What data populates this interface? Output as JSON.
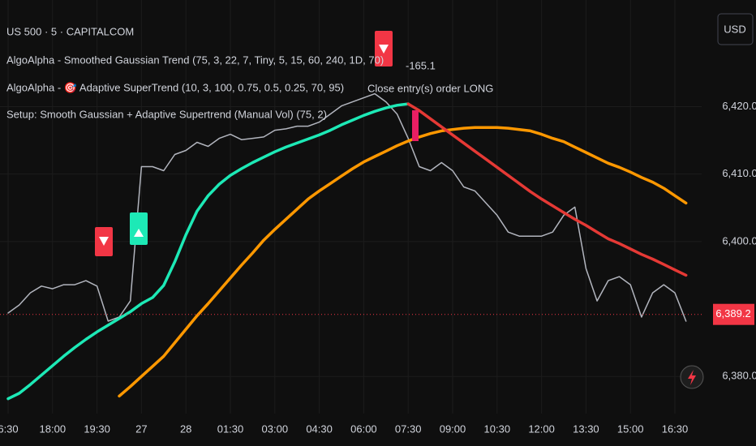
{
  "chart_data": {
    "type": "line",
    "title": "US 500 · 5 · CAPITALCOM",
    "indicators": [
      "AlgoAlpha - Smoothed Gaussian Trend (75, 3, 22, 7, Tiny, 5, 15, 60, 240, 1D, 70)",
      "AlgoAlpha - 🎯 Adaptive SuperTrend (10, 3, 100, 0.75, 0.5, 0.25, 70, 95)",
      "Setup: Smooth Gaussian + Adaptive Supertrend (Manual Vol) (75, 2)"
    ],
    "currency": "USD",
    "annotations": [
      "-165.1",
      "Close entry(s) order LONG"
    ],
    "categories": [
      "6:30",
      null,
      null,
      null,
      "18:00",
      null,
      null,
      null,
      "19:30",
      null,
      null,
      null,
      "27",
      null,
      null,
      null,
      "28",
      null,
      null,
      null,
      "01:30",
      null,
      null,
      null,
      "03:00",
      null,
      null,
      null,
      "04:30",
      null,
      null,
      null,
      "06:00",
      null,
      null,
      null,
      "07:30",
      null,
      null,
      null,
      "09:00",
      null,
      null,
      null,
      "10:30",
      null,
      null,
      null,
      "12:00",
      null,
      null,
      null,
      "13:30",
      null,
      null,
      null,
      "15:00",
      null,
      null,
      null,
      "16:30",
      null
    ],
    "series": [
      {
        "color": "#b2b5be",
        "values": [
          6389.4,
          6390.6,
          6392.4,
          6393.4,
          6393.0,
          6393.6,
          6393.6,
          6394.2,
          6393.4,
          6388.2,
          6388.8,
          6391.2,
          6411.1,
          6411.1,
          6410.5,
          6412.9,
          6413.5,
          6414.7,
          6414.1,
          6415.3,
          6415.9,
          6415.1,
          6415.3,
          6415.5,
          6416.5,
          6416.7,
          6417.1,
          6417.1,
          6417.7,
          6418.9,
          6420.1,
          6420.7,
          6421.3,
          6421.9,
          6420.7,
          6418.9,
          6415.3,
          6411.1,
          6410.5,
          6411.7,
          6410.5,
          6408.1,
          6407.5,
          6405.7,
          6403.9,
          6401.4,
          6400.8,
          6400.8,
          6400.8,
          6401.4,
          6403.9,
          6405.1,
          6396.0,
          6391.2,
          6394.2,
          6394.8,
          6393.6,
          6388.8,
          6392.4,
          6393.6,
          6392.4,
          6388.2
        ]
      },
      {
        "color": "#ff9800",
        "values": [
          null,
          null,
          null,
          null,
          null,
          null,
          null,
          null,
          null,
          null,
          6377.1,
          6378.5,
          6380.0,
          6381.5,
          6383.0,
          6385.0,
          6387.0,
          6389.0,
          6390.8,
          6392.7,
          6394.6,
          6396.5,
          6398.3,
          6400.2,
          6401.8,
          6403.3,
          6404.8,
          6406.3,
          6407.5,
          6408.6,
          6409.7,
          6410.8,
          6411.8,
          6412.6,
          6413.4,
          6414.2,
          6414.9,
          6415.5,
          6416.0,
          6416.4,
          6416.6,
          6416.8,
          6416.9,
          6416.9,
          6416.9,
          6416.8,
          6416.6,
          6416.4,
          6415.9,
          6415.3,
          6414.8,
          6414.0,
          6413.2,
          6412.4,
          6411.6,
          6411.0,
          6410.3,
          6409.5,
          6408.8,
          6407.9,
          6406.8,
          6405.7
        ]
      },
      {
        "color": "#1de9b6",
        "values": [
          6376.7,
          6377.5,
          6378.8,
          6380.2,
          6381.6,
          6383.0,
          6384.3,
          6385.5,
          6386.6,
          6387.6,
          6388.6,
          6389.6,
          6390.8,
          6391.7,
          6393.5,
          6397.0,
          6401.0,
          6404.5,
          6406.8,
          6408.5,
          6409.8,
          6410.8,
          6411.7,
          6412.5,
          6413.3,
          6414.0,
          6414.6,
          6415.2,
          6415.8,
          6416.5,
          6417.3,
          6418.0,
          6418.7,
          6419.3,
          6419.8,
          6420.2,
          6420.4,
          null,
          null,
          null,
          null,
          null,
          null,
          null,
          null,
          null,
          null,
          null,
          null,
          null,
          null,
          null,
          null,
          null,
          null,
          null,
          null,
          null,
          null,
          null,
          null,
          null
        ]
      },
      {
        "color": "#e53935",
        "values": [
          null,
          null,
          null,
          null,
          null,
          null,
          null,
          null,
          null,
          null,
          null,
          null,
          null,
          null,
          null,
          null,
          null,
          null,
          null,
          null,
          null,
          null,
          null,
          null,
          null,
          null,
          null,
          null,
          null,
          null,
          null,
          null,
          null,
          null,
          null,
          null,
          6420.4,
          6419.4,
          6418.2,
          6417.0,
          6415.8,
          6414.6,
          6413.4,
          6412.2,
          6411.0,
          6409.8,
          6408.6,
          6407.4,
          6406.3,
          6405.3,
          6404.3,
          6403.3,
          6402.4,
          6401.4,
          6400.4,
          6399.7,
          6398.9,
          6398.1,
          6397.4,
          6396.6,
          6395.8,
          6395.0
        ]
      }
    ],
    "last_price": {
      "value": 6389.2,
      "label": "6,389.2"
    },
    "ylim": [
      6374.5,
      6435.8
    ],
    "yticks": [
      {
        "value": 6380,
        "label": "6,380.0"
      },
      {
        "value": 6400,
        "label": "6,400.0"
      },
      {
        "value": 6410,
        "label": "6,410.0"
      },
      {
        "value": 6420,
        "label": "6,420.0"
      }
    ],
    "grid": true
  }
}
